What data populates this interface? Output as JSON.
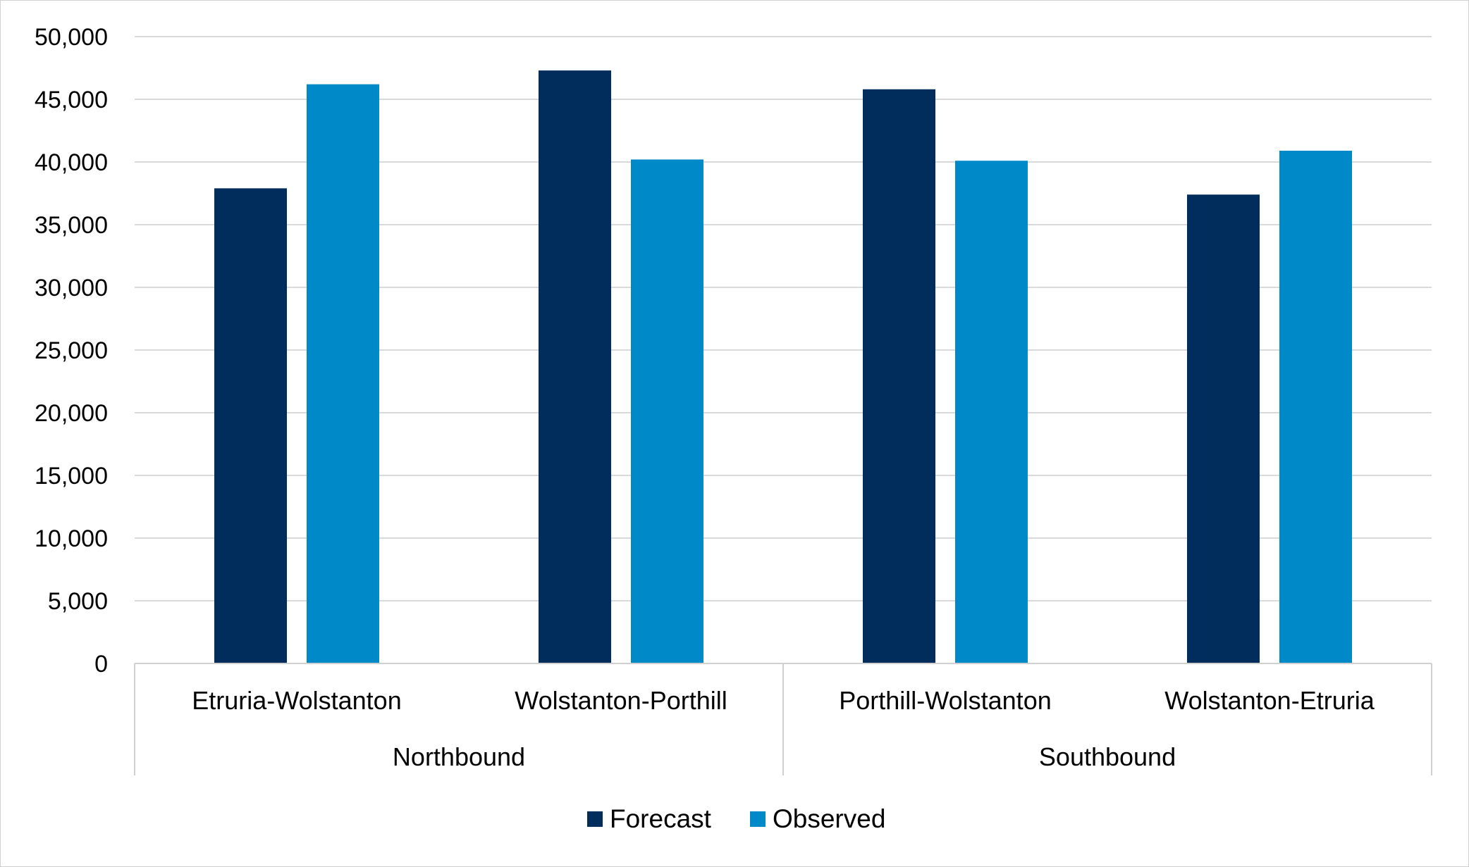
{
  "chart_data": {
    "type": "bar",
    "categories": [
      "Etruria-Wolstanton",
      "Wolstanton-Porthill",
      "Porthill-Wolstanton",
      "Wolstanton-Etruria"
    ],
    "groups": [
      {
        "label": "Northbound",
        "categories": [
          "Etruria-Wolstanton",
          "Wolstanton-Porthill"
        ]
      },
      {
        "label": "Southbound",
        "categories": [
          "Porthill-Wolstanton",
          "Wolstanton-Etruria"
        ]
      }
    ],
    "series": [
      {
        "name": "Forecast",
        "color": "#002d5c",
        "values": [
          37900,
          47300,
          45800,
          37400
        ]
      },
      {
        "name": "Observed",
        "color": "#0089c9",
        "values": [
          46200,
          40200,
          40100,
          40900
        ]
      }
    ],
    "ylim": [
      0,
      50000
    ],
    "yticks": [
      0,
      5000,
      10000,
      15000,
      20000,
      25000,
      30000,
      35000,
      40000,
      45000,
      50000
    ],
    "ytick_labels": [
      "0",
      "5,000",
      "10,000",
      "15,000",
      "20,000",
      "25,000",
      "30,000",
      "35,000",
      "40,000",
      "45,000",
      "50,000"
    ],
    "grid": true,
    "legend_position": "bottom",
    "title": "",
    "xlabel": "",
    "ylabel": ""
  }
}
